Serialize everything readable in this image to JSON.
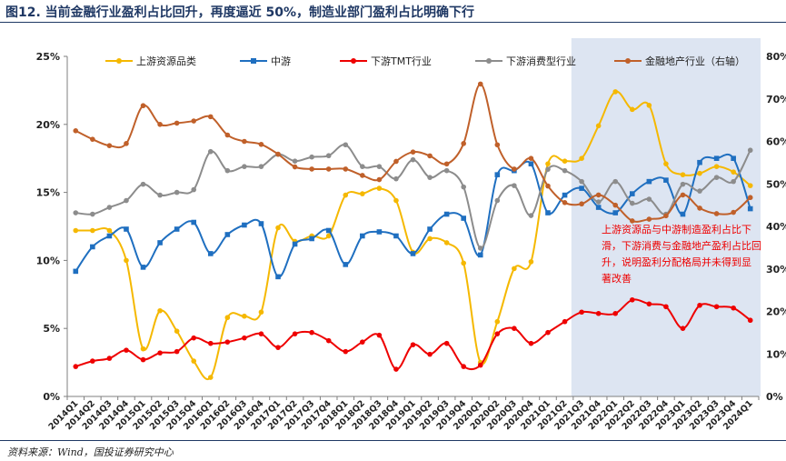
{
  "figure_title": "图12. 当前金融行业盈利占比回升，再度逼近 50%，制造业部门盈利占比明确下行",
  "source_note": "资料来源：Wind，国投证券研究中心",
  "colors": {
    "upstream": "#f5b800",
    "midstream": "#1f6fc0",
    "tmt": "#ee0000",
    "consumer": "#8c8c8c",
    "finance": "#c0602a",
    "shade": "#dde5f2",
    "annotation": "#ee0000"
  },
  "chart_data": {
    "type": "line",
    "categories": [
      "2014Q1",
      "2014Q2",
      "2014Q3",
      "2014Q4",
      "2015Q1",
      "2015Q2",
      "2015Q3",
      "2015Q4",
      "2016Q1",
      "2016Q2",
      "2016Q3",
      "2016Q4",
      "2017Q1",
      "2017Q2",
      "2017Q3",
      "2017Q4",
      "2018Q1",
      "2018Q2",
      "2018Q3",
      "2018Q4",
      "2019Q1",
      "2019Q2",
      "2019Q3",
      "2019Q4",
      "2020Q1",
      "2020Q2",
      "2020Q3",
      "2020Q4",
      "2021Q1",
      "2021Q2",
      "2021Q3",
      "2021Q4",
      "2022Q1",
      "2022Q2",
      "2022Q3",
      "2022Q4",
      "2023Q1",
      "2023Q2",
      "2023Q3",
      "2023Q4",
      "2024Q1"
    ],
    "left_axis": {
      "ylim": [
        0,
        25
      ],
      "ticks": [
        "0%",
        "5%",
        "10%",
        "15%",
        "20%",
        "25%"
      ]
    },
    "right_axis": {
      "ylim": [
        0,
        80
      ],
      "ticks": [
        "0%",
        "10%",
        "20%",
        "30%",
        "40%",
        "50%",
        "60%",
        "70%",
        "80%"
      ]
    },
    "shaded_from": "2021Q3",
    "series": [
      {
        "name": "上游资源品类",
        "key": "upstream",
        "axis": "left",
        "values": [
          12.2,
          12.2,
          12.2,
          10.0,
          3.5,
          6.3,
          4.8,
          2.6,
          1.4,
          5.8,
          5.9,
          6.2,
          12.4,
          11.4,
          11.8,
          11.8,
          14.8,
          14.9,
          15.3,
          14.4,
          10.6,
          11.6,
          11.3,
          9.8,
          2.5,
          5.5,
          9.4,
          9.9,
          17.1,
          17.3,
          17.5,
          19.9,
          22.4,
          21.1,
          21.4,
          17.1,
          16.3,
          16.4,
          16.9,
          16.5,
          15.5
        ]
      },
      {
        "name": "中游",
        "key": "midstream",
        "axis": "left",
        "values": [
          9.2,
          11.0,
          11.8,
          12.3,
          9.5,
          11.3,
          12.3,
          12.8,
          10.5,
          11.9,
          12.6,
          12.7,
          8.8,
          11.2,
          11.6,
          12.2,
          9.7,
          11.8,
          12.1,
          11.8,
          10.5,
          12.3,
          13.4,
          13.1,
          10.4,
          16.3,
          16.6,
          17.1,
          13.5,
          14.8,
          15.3,
          13.9,
          13.5,
          14.9,
          15.8,
          15.9,
          13.4,
          17.2,
          17.5,
          17.5,
          13.8
        ]
      },
      {
        "name": "下游TMT行业",
        "key": "tmt",
        "axis": "left",
        "values": [
          2.2,
          2.6,
          2.8,
          3.4,
          2.7,
          3.2,
          3.3,
          4.3,
          3.9,
          4.0,
          4.3,
          4.6,
          3.6,
          4.6,
          4.7,
          4.1,
          3.3,
          4.0,
          4.5,
          2.0,
          3.8,
          3.1,
          3.9,
          2.2,
          2.3,
          4.6,
          5.0,
          3.9,
          4.7,
          5.5,
          6.2,
          6.1,
          6.1,
          7.1,
          6.8,
          6.6,
          5.0,
          6.7,
          6.6,
          6.5,
          5.6
        ]
      },
      {
        "name": "下游消费型行业",
        "key": "consumer",
        "axis": "left",
        "values": [
          13.5,
          13.4,
          13.9,
          14.4,
          15.6,
          14.8,
          15.0,
          15.2,
          18.0,
          16.6,
          16.9,
          16.9,
          17.8,
          17.3,
          17.6,
          17.7,
          18.5,
          16.9,
          16.9,
          16.0,
          17.4,
          16.1,
          16.6,
          15.4,
          10.9,
          14.4,
          15.5,
          13.3,
          16.7,
          16.6,
          15.8,
          14.3,
          15.8,
          14.2,
          14.5,
          13.4,
          15.6,
          15.1,
          16.1,
          15.8,
          18.1
        ]
      },
      {
        "name": "金融地产行业（右轴）",
        "key": "finance",
        "axis": "right",
        "values": [
          62.5,
          60.5,
          59.0,
          59.5,
          68.4,
          64.0,
          64.3,
          64.8,
          65.8,
          61.5,
          60.0,
          59.3,
          57.0,
          54.0,
          53.5,
          53.5,
          53.5,
          52.0,
          51.0,
          55.3,
          57.5,
          56.6,
          54.7,
          59.5,
          73.5,
          59.2,
          53.5,
          56.0,
          49.5,
          45.6,
          45.3,
          47.4,
          45.0,
          41.3,
          41.7,
          42.5,
          47.4,
          44.3,
          43.0,
          43.3,
          46.8
        ]
      }
    ],
    "annotation": "上游资源品与中游制造盈利占比下滑，下游消费与金融地产盈利占比回升，说明盈利分配格局并未得到显著改善"
  }
}
